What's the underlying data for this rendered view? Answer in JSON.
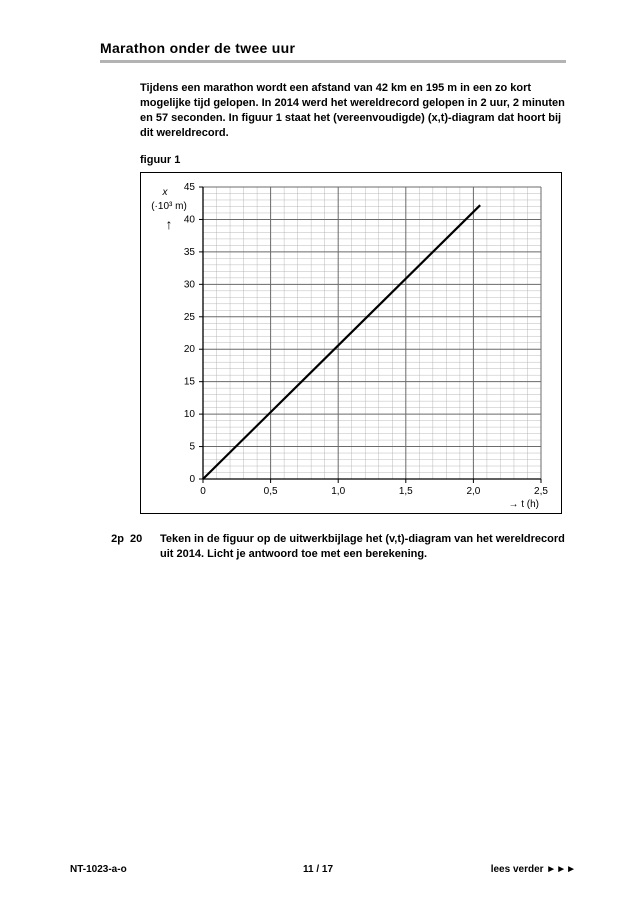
{
  "title": "Marathon onder de twee uur",
  "intro": "Tijdens een marathon wordt een afstand van 42 km en 195 m in een zo kort mogelijke tijd gelopen. In 2014 werd het wereldrecord gelopen in 2 uur, 2 minuten en 57 seconden. In figuur 1 staat het (vereenvoudigde) (x,t)-diagram dat hoort bij dit wereldrecord.",
  "figure_label": "figuur 1",
  "chart": {
    "type": "line",
    "background_color": "#ffffff",
    "grid_major_color": "#6b6b6b",
    "grid_minor_color": "#a9a9a9",
    "axis_color": "#000000",
    "line_color": "#000000",
    "line_width": 2.2,
    "x": {
      "min": 0,
      "max": 2.5,
      "major_step": 0.5,
      "minor_step": 0.1,
      "label": "→ t (h)",
      "ticks": [
        "0",
        "0,5",
        "1,0",
        "1,5",
        "2,0",
        "2,5"
      ]
    },
    "y": {
      "min": 0,
      "max": 45,
      "major_step": 5,
      "minor_step": 1,
      "label_top": "x",
      "unit": "(·10³ m)",
      "arrow": "↑",
      "ticks": [
        "0",
        "5",
        "10",
        "15",
        "20",
        "25",
        "30",
        "35",
        "40",
        "45"
      ]
    },
    "series": [
      {
        "points": [
          [
            0,
            0
          ],
          [
            2.05,
            42.195
          ]
        ]
      }
    ],
    "tick_fontsize": 10,
    "label_fontsize": 10
  },
  "question": {
    "points": "2p",
    "number": "20",
    "text": "Teken in de figuur op de uitwerkbijlage het (v,t)-diagram van het wereldrecord uit 2014. Licht je antwoord toe met een berekening."
  },
  "footer": {
    "left": "NT-1023-a-o",
    "center": "11 / 17",
    "right": "lees verder ►►►"
  }
}
